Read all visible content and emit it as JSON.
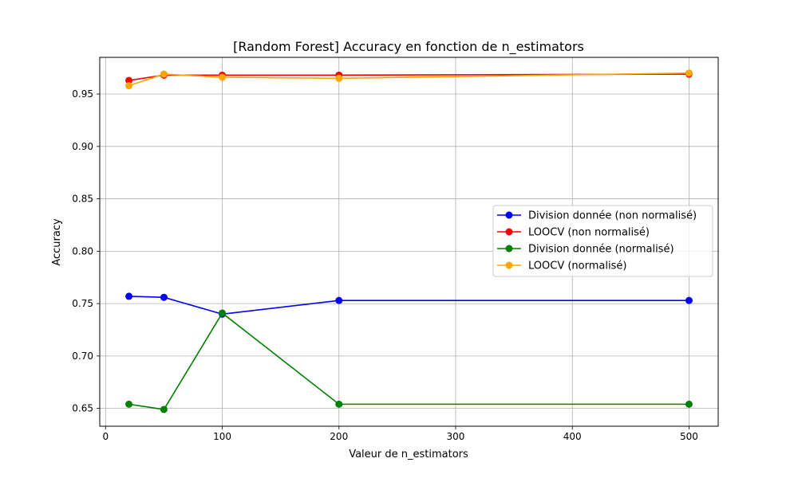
{
  "chart_data": {
    "type": "line",
    "title": "[Random Forest] Accuracy en fonction de n_estimators",
    "xlabel": "Valeur de n_estimators",
    "ylabel": "Accuracy",
    "xlim": [
      -5,
      525
    ],
    "ylim": [
      0.633,
      0.985
    ],
    "xticks": [
      0,
      100,
      200,
      300,
      400,
      500
    ],
    "xtick_labels": [
      "0",
      "100",
      "200",
      "300",
      "400",
      "500"
    ],
    "yticks": [
      0.65,
      0.7,
      0.75,
      0.8,
      0.85,
      0.9,
      0.95
    ],
    "ytick_labels": [
      "0.65",
      "0.70",
      "0.75",
      "0.80",
      "0.85",
      "0.90",
      "0.95"
    ],
    "grid": true,
    "legend_position": "center-right",
    "x": [
      20,
      50,
      100,
      200,
      500
    ],
    "series": [
      {
        "name": "Division donnée (non normalisé)",
        "color": "#0000ff",
        "values": [
          0.757,
          0.756,
          0.74,
          0.753,
          0.753
        ]
      },
      {
        "name": "LOOCV (non normalisé)",
        "color": "#ff0000",
        "values": [
          0.963,
          0.968,
          0.968,
          0.968,
          0.969
        ]
      },
      {
        "name": "Division donnée (normalisé)",
        "color": "#008000",
        "values": [
          0.654,
          0.649,
          0.741,
          0.654,
          0.654
        ]
      },
      {
        "name": "LOOCV (normalisé)",
        "color": "#ffa500",
        "values": [
          0.958,
          0.969,
          0.966,
          0.965,
          0.97
        ]
      }
    ]
  }
}
